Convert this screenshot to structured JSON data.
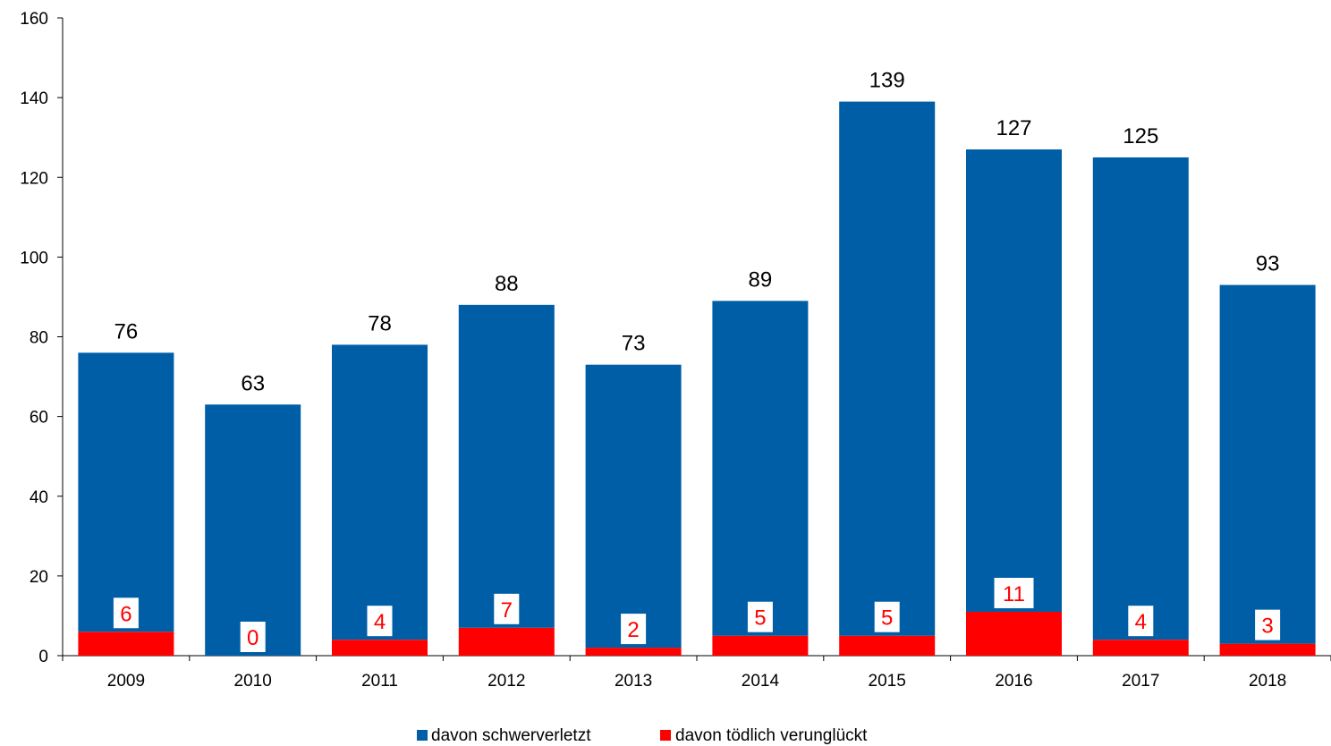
{
  "colors": {
    "schwerverletzt": "#005EA6",
    "toedlich": "#FF0000",
    "axis": "#000000",
    "label_box": "#FFFFFF"
  },
  "chart_data": {
    "type": "bar",
    "stacked": true,
    "categories": [
      "2009",
      "2010",
      "2011",
      "2012",
      "2013",
      "2014",
      "2015",
      "2016",
      "2017",
      "2018"
    ],
    "series": [
      {
        "name": "davon schwerverletzt",
        "values": [
          70,
          63,
          74,
          81,
          71,
          84,
          134,
          116,
          121,
          90
        ]
      },
      {
        "name": "davon tödlich verunglückt",
        "values": [
          6,
          0,
          4,
          7,
          2,
          5,
          5,
          11,
          4,
          3
        ]
      }
    ],
    "totals": [
      76,
      63,
      78,
      88,
      73,
      89,
      139,
      127,
      125,
      93
    ],
    "ylim": [
      0,
      160
    ],
    "yticks": [
      0,
      20,
      40,
      60,
      80,
      100,
      120,
      140,
      160
    ],
    "title": "",
    "xlabel": "",
    "ylabel": "",
    "grid": false,
    "legend_position": "bottom"
  }
}
